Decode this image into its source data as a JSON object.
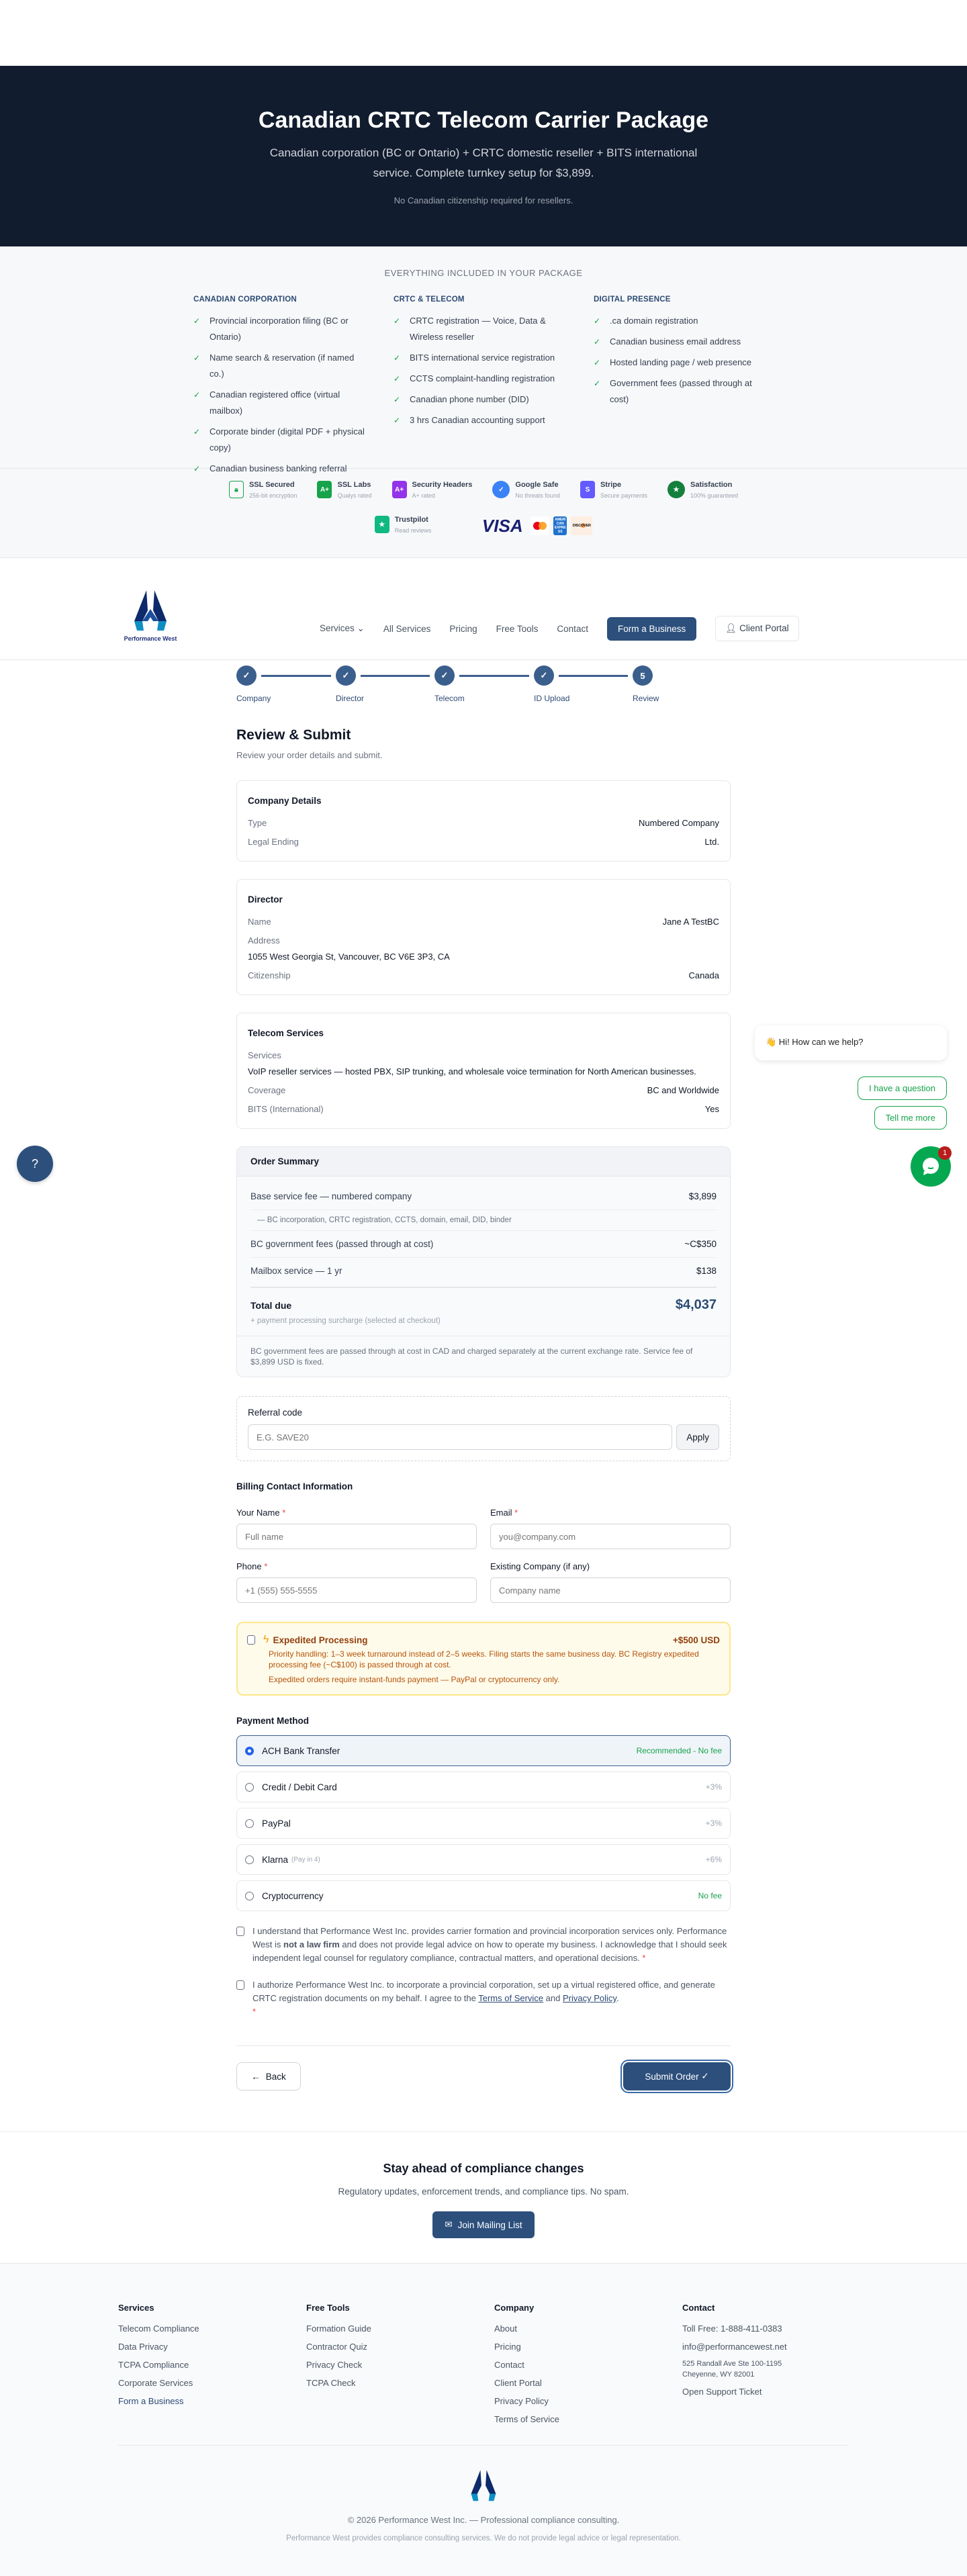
{
  "hero": {
    "title": "Canadian CRTC Telecom Carrier Package",
    "subtitle": "Canadian corporation (BC or Ontario) + CRTC domestic reseller + BITS international service. Complete turnkey setup for $3,899.",
    "note": "No Canadian citizenship required for resellers."
  },
  "package": {
    "heading": "EVERYTHING INCLUDED IN YOUR PACKAGE",
    "columns": [
      {
        "title": "CANADIAN CORPORATION",
        "items": [
          "Provincial incorporation filing (BC or Ontario)",
          "Name search & reservation (if named co.)",
          "Canadian registered office (virtual mailbox)",
          "Corporate binder (digital PDF + physical copy)",
          "Canadian business banking referral"
        ]
      },
      {
        "title": "CRTC & TELECOM",
        "items": [
          "CRTC registration — Voice, Data & Wireless reseller",
          "BITS international service registration",
          "CCTS complaint-handling registration",
          "Canadian phone number (DID)",
          "3 hrs Canadian accounting support"
        ]
      },
      {
        "title": "DIGITAL PRESENCE",
        "items": [
          ".ca domain registration",
          "Canadian business email address",
          "Hosted landing page / web presence",
          "Government fees (passed through at cost)"
        ]
      }
    ]
  },
  "trust": {
    "badges": [
      {
        "title": "SSL Secured",
        "sub": "256-bit encryption",
        "icon": "lock-icon",
        "color": "#16a34a"
      },
      {
        "title": "SSL Labs",
        "sub": "Qualys rated",
        "icon": "A+",
        "color": "#16a34a"
      },
      {
        "title": "Security Headers",
        "sub": "A+ rated",
        "icon": "A+",
        "color": "#9333ea"
      },
      {
        "title": "Google Safe",
        "sub": "No threats found",
        "icon": "check-shield-icon",
        "color": "#3b82f6"
      },
      {
        "title": "Stripe",
        "sub": "Secure payments",
        "icon": "S",
        "color": "#635bff"
      },
      {
        "title": "Satisfaction",
        "sub": "100% guaranteed",
        "icon": "star-seal-icon",
        "color": "#15803d"
      }
    ],
    "trustpilot": {
      "title": "Trustpilot",
      "sub": "Read reviews"
    },
    "cards": [
      "VISA",
      "mastercard",
      "AMERICAN EXPRESS",
      "DISCOVER"
    ]
  },
  "nav": {
    "brand": "Performance West",
    "links": [
      "Services",
      "All Services",
      "Pricing",
      "Free Tools",
      "Contact"
    ],
    "cta": "Form a Business",
    "portal": "Client Portal"
  },
  "stepper": {
    "steps": [
      {
        "label": "Company",
        "state": "done",
        "mark": "✓"
      },
      {
        "label": "Director",
        "state": "done",
        "mark": "✓"
      },
      {
        "label": "Telecom",
        "state": "done",
        "mark": "✓"
      },
      {
        "label": "ID Upload",
        "state": "done",
        "mark": "✓"
      },
      {
        "label": "Review",
        "state": "current",
        "mark": "5"
      }
    ]
  },
  "review": {
    "title": "Review & Submit",
    "lead": "Review your order details and submit.",
    "company": {
      "title": "Company Details",
      "type_label": "Type",
      "type": "Numbered Company",
      "ending_label": "Legal Ending",
      "ending": "Ltd."
    },
    "director": {
      "title": "Director",
      "name_label": "Name",
      "name": "Jane A TestBC",
      "address_label": "Address",
      "address": "1055 West Georgia St, Vancouver, BC V6E 3P3, CA",
      "citizenship_label": "Citizenship",
      "citizenship": "Canada"
    },
    "telecom": {
      "title": "Telecom Services",
      "services_label": "Services",
      "services": "VoIP reseller services — hosted PBX, SIP trunking, and wholesale voice termination for North American businesses.",
      "coverage_label": "Coverage",
      "coverage": "BC and Worldwide",
      "bits_label": "BITS (International)",
      "bits": "Yes"
    }
  },
  "summary": {
    "title": "Order Summary",
    "base_label": "Base service fee — numbered company",
    "base": "$3,899",
    "base_detail": "— BC incorporation, CRTC registration, CCTS, domain, email, DID, binder",
    "gov_label": "BC government fees (passed through at cost)",
    "gov": "~C$350",
    "mailbox_label": "Mailbox service — 1 yr",
    "mailbox": "$138",
    "total_label": "Total due",
    "total": "$4,037",
    "surcharge": "+ payment processing surcharge (selected at checkout)",
    "footnote": "BC government fees are passed through at cost in CAD and charged separately at the current exchange rate. Service fee of $3,899 USD is fixed."
  },
  "referral": {
    "label": "Referral code",
    "placeholder": "E.G. SAVE20",
    "apply": "Apply"
  },
  "billing": {
    "title": "Billing Contact Information",
    "name_label": "Your Name",
    "name_placeholder": "Full name",
    "email_label": "Email",
    "email_placeholder": "you@company.com",
    "phone_label": "Phone",
    "phone_placeholder": "+1 (555) 555-5555",
    "company_label": "Existing Company (if any)",
    "company_placeholder": "Company name",
    "required_mark": "*"
  },
  "expedited": {
    "title": "Expedited Processing",
    "price": "+$500 USD",
    "desc": "Priority handling: 1–3 week turnaround instead of 2–5 weeks. Filing starts the same business day. BC Registry expedited processing fee (~C$100) is passed through at cost.",
    "note": "Expedited orders require instant-funds payment — PayPal or cryptocurrency only."
  },
  "payment": {
    "title": "Payment Method",
    "options": [
      {
        "label": "ACH Bank Transfer",
        "extra": "",
        "fee": "Recommended - No fee",
        "selected": true
      },
      {
        "label": "Credit / Debit Card",
        "extra": "",
        "fee": "+3%",
        "selected": false
      },
      {
        "label": "PayPal",
        "extra": "",
        "fee": "+3%",
        "selected": false
      },
      {
        "label": "Klarna",
        "extra": "(Pay in 4)",
        "fee": "+6%",
        "selected": false
      },
      {
        "label": "Cryptocurrency",
        "extra": "",
        "fee": "No fee",
        "selected": false
      }
    ]
  },
  "agreements": {
    "a1_pre": "I understand that Performance West Inc. provides carrier formation and provincial incorporation services only. Performance West is ",
    "a1_bold": "not a law firm",
    "a1_post": " and does not provide legal advice on how to operate my business. I acknowledge that I should seek independent legal counsel for regulatory compliance, contractual matters, and operational decisions.",
    "a2_pre": "I authorize Performance West Inc. to incorporate a provincial corporation, set up a virtual registered office, and generate CRTC registration documents on my behalf. I agree to the ",
    "a2_tos": "Terms of Service",
    "a2_and": " and ",
    "a2_pp": "Privacy Policy",
    "a2_end": "."
  },
  "actions": {
    "back": "Back",
    "submit": "Submit Order"
  },
  "newsletter": {
    "title": "Stay ahead of compliance changes",
    "text": "Regulatory updates, enforcement trends, and compliance tips. No spam.",
    "button": "Join Mailing List"
  },
  "footer": {
    "services": {
      "title": "Services",
      "links": [
        "Telecom Compliance",
        "Data Privacy",
        "TCPA Compliance",
        "Corporate Services",
        "Form a Business"
      ]
    },
    "tools": {
      "title": "Free Tools",
      "links": [
        "Formation Guide",
        "Contractor Quiz",
        "Privacy Check",
        "TCPA Check"
      ]
    },
    "company": {
      "title": "Company",
      "links": [
        "About",
        "Pricing",
        "Contact",
        "Client Portal",
        "Privacy Policy",
        "Terms of Service"
      ]
    },
    "contact": {
      "title": "Contact",
      "phone": "Toll Free: 1-888-411-0383",
      "email": "info@performancewest.net",
      "address1": "525 Randall Ave Ste 100-1195",
      "address2": "Cheyenne, WY 82001",
      "ticket": "Open Support Ticket"
    },
    "copyright": "© 2026 Performance West Inc. — Professional compliance consulting.",
    "disclaimer": "Performance West provides compliance consulting services. We do not provide legal advice or legal representation."
  },
  "chat": {
    "greeting": "👋 Hi! How can we help?",
    "options": [
      "I have a question",
      "Tell me more"
    ],
    "unread": "1"
  },
  "colors": {
    "primary": "#2c4f7c",
    "hero_bg": "#111c2e",
    "success": "#16a34a",
    "warning_bg": "#fffbeb",
    "chat_green": "#05a850"
  }
}
